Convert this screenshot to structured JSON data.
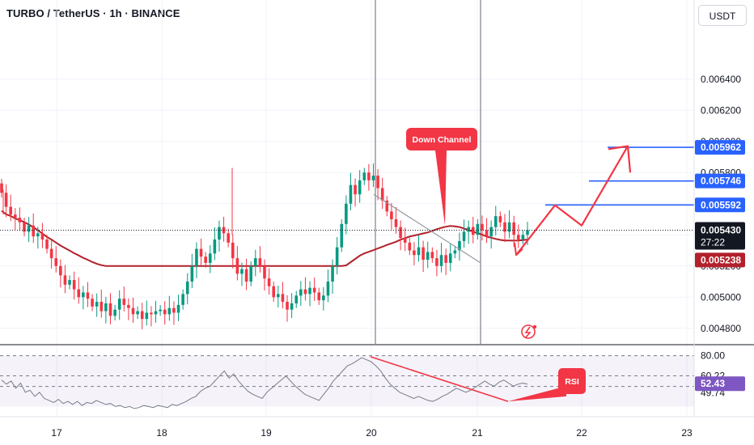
{
  "header": {
    "title": "TURBO / TetherUS · 1h · BINANCE",
    "currency": "USDT"
  },
  "colors": {
    "up": "#089981",
    "down": "#f23645",
    "ma": "#b2212b",
    "level": "#2962ff",
    "arrow": "#f23645",
    "rsi": "#7e57c2"
  },
  "chart_data": [
    {
      "type": "candlestick",
      "title": "TURBO / TetherUS · 1h · BINANCE",
      "ylabel": "USDT",
      "ylim": [
        0.0047,
        0.0067
      ],
      "x_ticks": [
        "17",
        "18",
        "19",
        "20",
        "21",
        "22",
        "23"
      ],
      "y_ticks": [
        "0.004800",
        "0.005000",
        "0.005200",
        "0.005400",
        "0.005600",
        "0.005800",
        "0.006000",
        "0.006200",
        "0.006400"
      ],
      "last_price": {
        "value": "0.005430",
        "countdown": "27:22"
      },
      "moving_average": {
        "label": "0.005238"
      },
      "target_levels": [
        "0.005592",
        "0.005746",
        "0.005962"
      ],
      "annotations": [
        {
          "type": "callout",
          "text": "Down Channel"
        }
      ],
      "candles_close": [
        0.00567,
        0.00558,
        0.00553,
        0.00551,
        0.00548,
        0.00542,
        0.00546,
        0.00539,
        0.00541,
        0.00537,
        0.00531,
        0.00525,
        0.0052,
        0.00514,
        0.00508,
        0.00511,
        0.00505,
        0.005,
        0.00503,
        0.00499,
        0.00494,
        0.00497,
        0.00491,
        0.00496,
        0.00488,
        0.00492,
        0.00499,
        0.00495,
        0.00493,
        0.00489,
        0.00491,
        0.00486,
        0.0049,
        0.00489,
        0.00491,
        0.00492,
        0.00489,
        0.00493,
        0.0049,
        0.00495,
        0.00502,
        0.0051,
        0.0052,
        0.00531,
        0.00526,
        0.00522,
        0.00528,
        0.00537,
        0.00545,
        0.00541,
        0.00535,
        0.00525,
        0.00515,
        0.00518,
        0.0051,
        0.0052,
        0.00525,
        0.0052,
        0.00512,
        0.00507,
        0.005,
        0.00502,
        0.00497,
        0.00492,
        0.00496,
        0.00501,
        0.00505,
        0.00502,
        0.00506,
        0.00503,
        0.00498,
        0.00501,
        0.0051,
        0.0052,
        0.00532,
        0.00547,
        0.0056,
        0.00572,
        0.00566,
        0.00575,
        0.0058,
        0.00575,
        0.00578,
        0.0057,
        0.00562,
        0.00555,
        0.0055,
        0.00545,
        0.00538,
        0.00535,
        0.0053,
        0.00527,
        0.00532,
        0.00524,
        0.00529,
        0.00525,
        0.0052,
        0.00527,
        0.00522,
        0.00528,
        0.0053,
        0.00536,
        0.00542,
        0.00545,
        0.0054,
        0.00547,
        0.00543,
        0.00539,
        0.00545,
        0.00552,
        0.00548,
        0.00542,
        0.00548,
        0.0054,
        0.00537,
        0.0054,
        0.00543
      ]
    },
    {
      "type": "line",
      "title": "RSI",
      "ylim": [
        20,
        90
      ],
      "y_ticks": [
        "80.00",
        "60.22",
        "49.74"
      ],
      "last_value": "52.43",
      "values": [
        56,
        52,
        55,
        48,
        53,
        44,
        46,
        40,
        44,
        38,
        36,
        34,
        37,
        33,
        35,
        32,
        35,
        31,
        34,
        33,
        36,
        34,
        32,
        33,
        30,
        31,
        29,
        30,
        28,
        29,
        31,
        30,
        29,
        31,
        30,
        29,
        32,
        31,
        33,
        35,
        38,
        40,
        45,
        48,
        50,
        55,
        60,
        65,
        58,
        62,
        55,
        50,
        45,
        42,
        40,
        38,
        44,
        48,
        52,
        56,
        60,
        55,
        50,
        46,
        42,
        40,
        38,
        36,
        42,
        48,
        55,
        60,
        65,
        70,
        72,
        75,
        78,
        76,
        74,
        70,
        65,
        58,
        52,
        48,
        44,
        42,
        40,
        38,
        40,
        38,
        36,
        35,
        37,
        40,
        42,
        45,
        48,
        46,
        44,
        46,
        49,
        52,
        55,
        52,
        50,
        54,
        56,
        53,
        50,
        52,
        53,
        52
      ]
    }
  ],
  "labels": {
    "rsi_callout": "RSI"
  }
}
